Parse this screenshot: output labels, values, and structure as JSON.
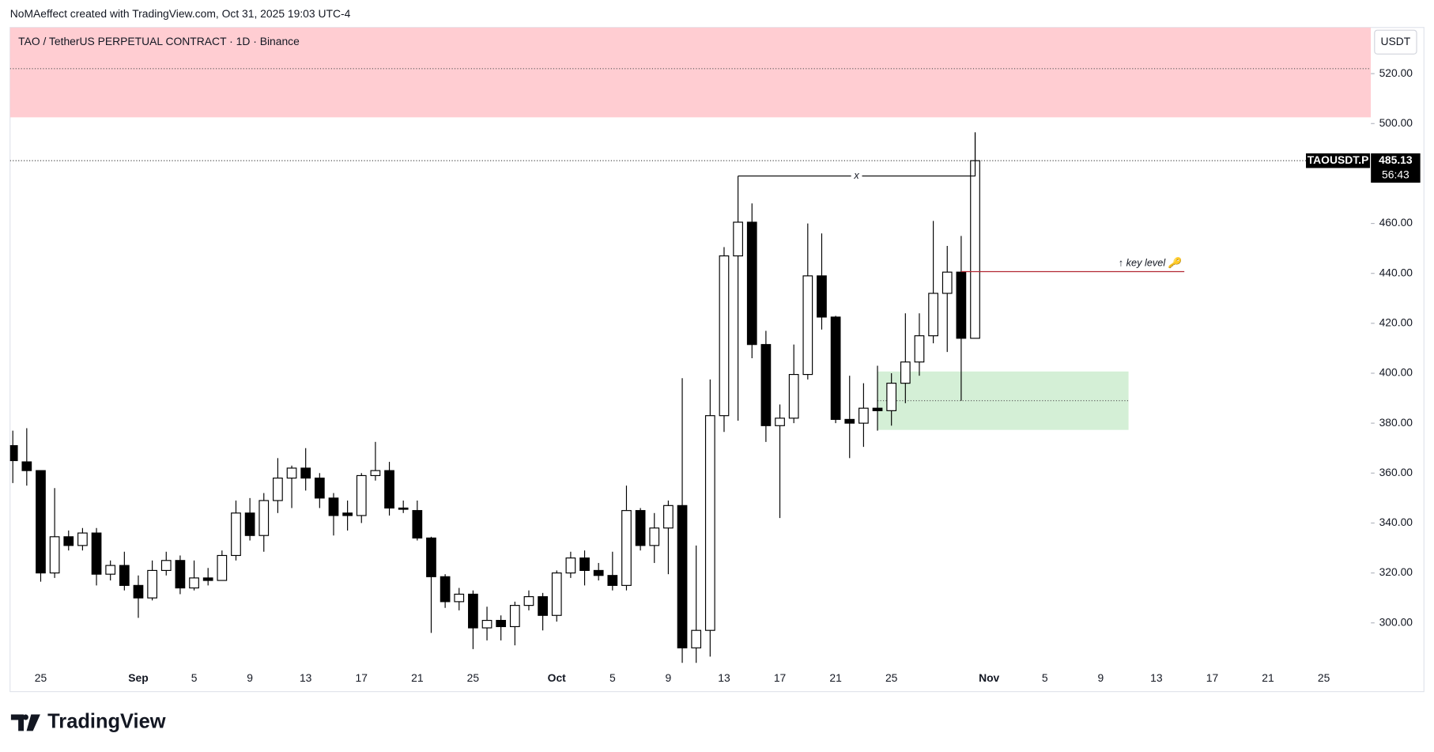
{
  "header": "NoMAeffect created with TradingView.com, Oct 31, 2025 19:03 UTC-4",
  "brand": "TradingView",
  "chart_data": {
    "type": "candlestick",
    "title": "TAO / TetherUS PERPETUAL CONTRACT · 1D · Binance",
    "currency": "USDT",
    "symbol": "TAOUSDT.P",
    "countdown": "56:43",
    "up_color": "#ffffff",
    "down_color": "#000000",
    "border_color": "#000000",
    "x": [
      "Aug 23",
      "Aug 24",
      "Aug 25",
      "Aug 26",
      "Aug 27",
      "Aug 28",
      "Aug 29",
      "Aug 30",
      "Aug 31",
      "Sep 1",
      "Sep 2",
      "Sep 3",
      "Sep 4",
      "Sep 5",
      "Sep 6",
      "Sep 7",
      "Sep 8",
      "Sep 9",
      "Sep 10",
      "Sep 11",
      "Sep 12",
      "Sep 13",
      "Sep 14",
      "Sep 15",
      "Sep 16",
      "Sep 17",
      "Sep 18",
      "Sep 19",
      "Sep 20",
      "Sep 21",
      "Sep 22",
      "Sep 23",
      "Sep 24",
      "Sep 25",
      "Sep 26",
      "Sep 27",
      "Sep 28",
      "Sep 29",
      "Sep 30",
      "Oct 1",
      "Oct 2",
      "Oct 3",
      "Oct 4",
      "Oct 5",
      "Oct 6",
      "Oct 7",
      "Oct 8",
      "Oct 9",
      "Oct 10",
      "Oct 11",
      "Oct 12",
      "Oct 13",
      "Oct 14",
      "Oct 15",
      "Oct 16",
      "Oct 17",
      "Oct 18",
      "Oct 19",
      "Oct 20",
      "Oct 21",
      "Oct 22",
      "Oct 23",
      "Oct 24",
      "Oct 25",
      "Oct 26",
      "Oct 27",
      "Oct 28",
      "Oct 29",
      "Oct 30",
      "Oct 31"
    ],
    "open": [
      371,
      364.5,
      361,
      320,
      334.5,
      331,
      336,
      319.5,
      323,
      315,
      310,
      321,
      325,
      314,
      318,
      317,
      327,
      344,
      335,
      349,
      358,
      362,
      358,
      350,
      344,
      343,
      359,
      361,
      346,
      345,
      334,
      318.5,
      308.5,
      311.5,
      298,
      301,
      298.5,
      307,
      310.5,
      303,
      320,
      326,
      321,
      319,
      315,
      345,
      331,
      338,
      347,
      290,
      297,
      383,
      447,
      460.5,
      411.5,
      379,
      382,
      399.5,
      439,
      422.5,
      381.5,
      380,
      386,
      385,
      396,
      404.5,
      415,
      432,
      440.5,
      414
    ],
    "high": [
      377,
      378,
      361,
      354,
      337,
      338,
      338,
      325,
      328.5,
      319,
      325,
      328.5,
      327,
      325,
      322,
      329,
      349,
      350,
      352,
      366,
      363,
      370,
      360,
      352,
      349,
      360,
      372.5,
      364.5,
      349,
      349,
      334.5,
      319.5,
      314,
      313,
      306.5,
      303,
      308.5,
      313,
      312,
      321,
      328.5,
      329,
      324,
      328.5,
      355,
      346,
      344,
      349,
      398,
      331,
      397.5,
      450.5,
      479,
      468,
      417,
      387.5,
      411.5,
      460,
      456,
      423,
      399,
      396,
      403,
      400,
      424,
      424,
      461,
      451,
      455,
      496.5
    ],
    "low": [
      356,
      355,
      316.5,
      318,
      329,
      329,
      315,
      317,
      313,
      302,
      309,
      319,
      311.5,
      313,
      315,
      317,
      325,
      333,
      328.5,
      344,
      346,
      353,
      346,
      335,
      337,
      340,
      357,
      343,
      344,
      333,
      296,
      306,
      305,
      289.5,
      293,
      293,
      291,
      305,
      297,
      300.5,
      318,
      315,
      317,
      313,
      313,
      329,
      324,
      319.5,
      284,
      284,
      286.5,
      376.5,
      381,
      406,
      372.5,
      342,
      380,
      397.5,
      417.5,
      380,
      366,
      370.5,
      377,
      379,
      388,
      399,
      412,
      408.5,
      389,
      414
    ],
    "close": [
      365,
      361,
      320,
      334.5,
      331,
      336,
      319.5,
      323,
      315,
      310,
      321,
      325,
      314,
      318,
      317,
      327,
      344,
      335,
      349,
      358,
      362,
      358,
      350,
      343,
      343,
      359,
      361,
      346,
      345.5,
      334,
      318.5,
      308.5,
      311.5,
      298,
      301,
      298.5,
      307,
      310.5,
      303,
      320,
      326,
      321,
      319,
      315,
      345,
      331,
      338,
      347,
      290,
      297,
      383,
      447,
      460.5,
      411.5,
      379,
      382,
      399.5,
      439,
      422.5,
      381.5,
      380,
      386,
      385,
      396,
      404.5,
      415,
      432,
      440.5,
      414,
      485.13
    ],
    "ylim": [
      282,
      538.5
    ],
    "yticks": [
      {
        "value": 300,
        "label": "300.00"
      },
      {
        "value": 320,
        "label": "320.00"
      },
      {
        "value": 340,
        "label": "340.00"
      },
      {
        "value": 360,
        "label": "360.00"
      },
      {
        "value": 380,
        "label": "380.00"
      },
      {
        "value": 400,
        "label": "400.00"
      },
      {
        "value": 420,
        "label": "420.00"
      },
      {
        "value": 440,
        "label": "440.00"
      },
      {
        "value": 460,
        "label": "460.00"
      },
      {
        "value": 500,
        "label": "500.00"
      },
      {
        "value": 520,
        "label": "520.00"
      }
    ],
    "xticks": [
      {
        "value": "Aug 25",
        "label": "25"
      },
      {
        "value": "Sep 1",
        "label": "Sep"
      },
      {
        "value": "Sep 5",
        "label": "5"
      },
      {
        "value": "Sep 9",
        "label": "9"
      },
      {
        "value": "Sep 13",
        "label": "13"
      },
      {
        "value": "Sep 17",
        "label": "17"
      },
      {
        "value": "Sep 21",
        "label": "21"
      },
      {
        "value": "Sep 25",
        "label": "25"
      },
      {
        "value": "Oct 1",
        "label": "Oct"
      },
      {
        "value": "Oct 5",
        "label": "5"
      },
      {
        "value": "Oct 9",
        "label": "9"
      },
      {
        "value": "Oct 13",
        "label": "13"
      },
      {
        "value": "Oct 17",
        "label": "17"
      },
      {
        "value": "Oct 21",
        "label": "21"
      },
      {
        "value": "Oct 25",
        "label": "25"
      },
      {
        "value": "Nov 1",
        "label": "Nov"
      },
      {
        "value": "Nov 5",
        "label": "5"
      },
      {
        "value": "Nov 9",
        "label": "9"
      },
      {
        "value": "Nov 13",
        "label": "13"
      },
      {
        "value": "Nov 17",
        "label": "17"
      },
      {
        "value": "Nov 21",
        "label": "21"
      },
      {
        "value": "Nov 25",
        "label": "25"
      }
    ],
    "supply_zone": {
      "top": 538.5,
      "bottom": 502.5,
      "line": 522,
      "color": "#ffcdd2"
    },
    "demand_zone": {
      "start": "Oct 24",
      "end": "Nov 11",
      "top": 400.7,
      "bottom": 377.3,
      "line": 389,
      "color": "#d4efd6"
    },
    "bracket": {
      "start": "Oct 14",
      "end": "Oct 31",
      "level": 479,
      "label": "x"
    },
    "key_level": {
      "start": "Oct 30",
      "end": "Nov 15",
      "value": 440.7,
      "label": "↑ key level 🔑",
      "color": "#b22833"
    }
  }
}
